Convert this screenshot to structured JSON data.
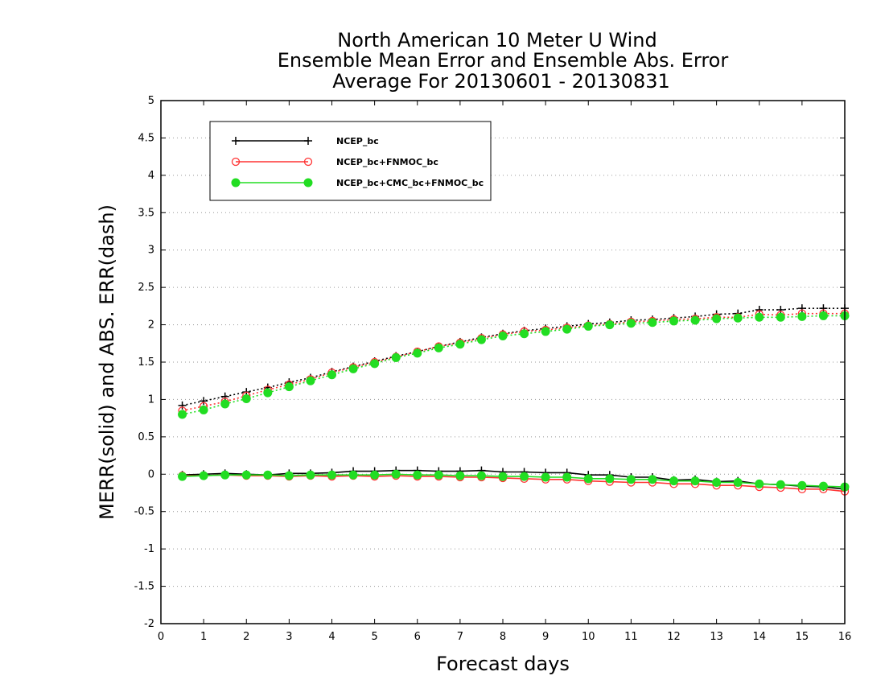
{
  "chart_data": {
    "type": "line",
    "title_lines": [
      "North American 10 Meter U Wind",
      "Ensemble Mean Error and Ensemble Abs. Error",
      "Average For 20130601 - 20130831"
    ],
    "xlabel": "Forecast days",
    "ylabel": "MERR(solid) and ABS. ERR(dash)",
    "xlim": [
      0,
      16
    ],
    "ylim": [
      -2,
      5
    ],
    "xticks": [
      0,
      1,
      2,
      3,
      4,
      5,
      6,
      7,
      8,
      9,
      10,
      11,
      12,
      13,
      14,
      15,
      16
    ],
    "yticks": [
      -2,
      -1.5,
      -1,
      -0.5,
      0,
      0.5,
      1,
      1.5,
      2,
      2.5,
      3,
      3.5,
      4,
      4.5,
      5
    ],
    "ytick_labels": [
      "-2",
      "-1.5",
      "-1",
      "-0.5",
      "0",
      "0.5",
      "1",
      "1.5",
      "2",
      "2.5",
      "3",
      "3.5",
      "4",
      "4.5",
      "5"
    ],
    "grid": "horizontal dotted",
    "legend_position": "top-left",
    "x": [
      0.5,
      1,
      1.5,
      2,
      2.5,
      3,
      3.5,
      4,
      4.5,
      5,
      5.5,
      6,
      6.5,
      7,
      7.5,
      8,
      8.5,
      9,
      9.5,
      10,
      10.5,
      11,
      11.5,
      12,
      12.5,
      13,
      13.5,
      14,
      14.5,
      15,
      15.5,
      16
    ],
    "series": [
      {
        "name": "NCEP_bc",
        "color": "#000000",
        "marker": "plus",
        "merr": [
          -0.01,
          0.0,
          0.01,
          0.0,
          -0.01,
          0.01,
          0.01,
          0.02,
          0.04,
          0.04,
          0.05,
          0.05,
          0.04,
          0.04,
          0.05,
          0.03,
          0.03,
          0.02,
          0.02,
          -0.01,
          -0.01,
          -0.04,
          -0.04,
          -0.08,
          -0.07,
          -0.1,
          -0.09,
          -0.13,
          -0.14,
          -0.16,
          -0.17,
          -0.2
        ],
        "abs_err": [
          0.92,
          0.98,
          1.04,
          1.1,
          1.16,
          1.23,
          1.29,
          1.37,
          1.44,
          1.51,
          1.58,
          1.64,
          1.71,
          1.77,
          1.83,
          1.88,
          1.92,
          1.95,
          1.98,
          2.01,
          2.03,
          2.06,
          2.07,
          2.09,
          2.11,
          2.14,
          2.15,
          2.2,
          2.2,
          2.22,
          2.22,
          2.22
        ]
      },
      {
        "name": "NCEP_bc+FNMOC_bc",
        "color": "#ff3333",
        "marker": "open-circle",
        "merr": [
          -0.02,
          -0.02,
          -0.01,
          -0.02,
          -0.02,
          -0.03,
          -0.02,
          -0.03,
          -0.02,
          -0.03,
          -0.02,
          -0.03,
          -0.03,
          -0.04,
          -0.04,
          -0.05,
          -0.06,
          -0.07,
          -0.07,
          -0.09,
          -0.1,
          -0.11,
          -0.11,
          -0.13,
          -0.13,
          -0.15,
          -0.15,
          -0.17,
          -0.18,
          -0.2,
          -0.2,
          -0.23
        ],
        "abs_err": [
          0.85,
          0.91,
          0.97,
          1.05,
          1.13,
          1.2,
          1.27,
          1.36,
          1.43,
          1.5,
          1.57,
          1.64,
          1.71,
          1.76,
          1.82,
          1.87,
          1.91,
          1.93,
          1.96,
          1.99,
          2.01,
          2.04,
          2.05,
          2.07,
          2.08,
          2.1,
          2.1,
          2.14,
          2.13,
          2.15,
          2.15,
          2.15
        ]
      },
      {
        "name": "NCEP_bc+CMC_bc+FNMOC_bc",
        "color": "#22dd22",
        "marker": "filled-circle",
        "merr": [
          -0.03,
          -0.02,
          -0.01,
          -0.01,
          -0.01,
          -0.02,
          -0.01,
          -0.01,
          -0.01,
          -0.01,
          0.0,
          -0.01,
          -0.01,
          -0.02,
          -0.02,
          -0.03,
          -0.03,
          -0.04,
          -0.04,
          -0.06,
          -0.06,
          -0.07,
          -0.07,
          -0.09,
          -0.09,
          -0.11,
          -0.11,
          -0.13,
          -0.14,
          -0.15,
          -0.16,
          -0.17
        ],
        "abs_err": [
          0.8,
          0.86,
          0.94,
          1.01,
          1.09,
          1.17,
          1.25,
          1.33,
          1.41,
          1.48,
          1.56,
          1.62,
          1.69,
          1.74,
          1.8,
          1.85,
          1.88,
          1.91,
          1.94,
          1.98,
          2.0,
          2.02,
          2.03,
          2.05,
          2.06,
          2.08,
          2.09,
          2.1,
          2.1,
          2.11,
          2.12,
          2.12
        ]
      }
    ]
  }
}
